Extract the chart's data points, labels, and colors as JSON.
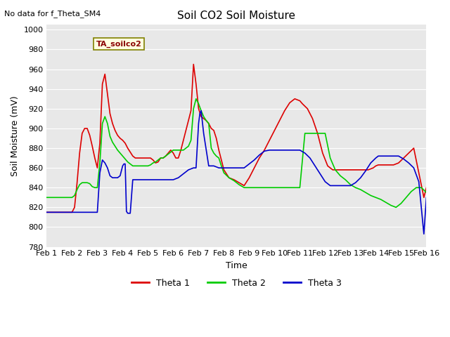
{
  "title": "Soil CO2 Soil Moisture",
  "subtitle": "No data for f_Theta_SM4",
  "ylabel": "Soil Moisture (mV)",
  "xlabel": "Time",
  "legend_label": "TA_soilco2",
  "ylim": [
    780,
    1005
  ],
  "yticks": [
    780,
    800,
    820,
    840,
    860,
    880,
    900,
    920,
    940,
    960,
    980,
    1000
  ],
  "x_labels": [
    "Feb 1",
    "Feb 2",
    "Feb 3",
    "Feb 4",
    "Feb 5",
    "Feb 6",
    "Feb 7",
    "Feb 8",
    "Feb 9",
    "Feb 10",
    "Feb 11",
    "Feb 12",
    "Feb 13",
    "Feb 14",
    "Feb 15",
    "Feb 16"
  ],
  "bg_color": "#e8e8e8",
  "theta1_color": "#dd0000",
  "theta2_color": "#00cc00",
  "theta3_color": "#0000cc",
  "theta1_x": [
    1.0,
    1.1,
    1.2,
    1.3,
    1.4,
    1.5,
    1.6,
    1.7,
    1.8,
    1.9,
    2.0,
    2.1,
    2.2,
    2.3,
    2.4,
    2.5,
    2.6,
    2.7,
    2.8,
    2.9,
    3.0,
    3.1,
    3.2,
    3.3,
    3.4,
    3.5,
    3.6,
    3.7,
    3.8,
    3.9,
    4.0,
    4.1,
    4.2,
    4.3,
    4.4,
    4.5,
    4.6,
    4.7,
    4.8,
    4.9,
    5.0,
    5.1,
    5.2,
    5.3,
    5.4,
    5.5,
    5.6,
    5.7,
    5.8,
    5.9,
    6.0,
    6.1,
    6.2,
    6.3,
    6.4,
    6.5,
    6.6,
    6.7,
    6.8,
    6.9,
    7.0,
    7.1,
    7.2,
    7.3,
    7.4,
    7.5,
    7.6,
    7.7,
    7.8,
    7.9,
    8.0,
    8.2,
    8.4,
    8.6,
    8.8,
    9.0,
    9.2,
    9.4,
    9.6,
    9.8,
    10.0,
    10.2,
    10.4,
    10.6,
    10.8,
    11.0,
    11.1,
    11.3,
    11.5,
    11.7,
    11.9,
    12.1,
    12.3,
    12.5,
    12.7,
    12.9,
    13.1,
    13.3,
    13.5,
    13.7,
    13.9,
    14.0,
    14.1,
    14.3,
    14.5,
    14.7,
    14.9,
    15.1,
    15.3,
    15.5,
    15.7,
    15.9,
    16.0
  ],
  "theta1_y": [
    815,
    815,
    815,
    815,
    815,
    815,
    815,
    815,
    815,
    815,
    815,
    820,
    845,
    875,
    895,
    900,
    900,
    893,
    882,
    870,
    860,
    885,
    945,
    955,
    935,
    915,
    905,
    898,
    893,
    890,
    888,
    885,
    880,
    876,
    872,
    870,
    870,
    870,
    870,
    870,
    870,
    870,
    868,
    865,
    866,
    870,
    870,
    872,
    875,
    878,
    875,
    870,
    870,
    878,
    888,
    898,
    908,
    918,
    965,
    945,
    920,
    912,
    910,
    908,
    905,
    900,
    898,
    890,
    878,
    868,
    858,
    850,
    848,
    845,
    842,
    850,
    860,
    870,
    878,
    888,
    898,
    908,
    918,
    926,
    930,
    928,
    925,
    920,
    910,
    895,
    875,
    862,
    858,
    858,
    858,
    858,
    858,
    858,
    858,
    858,
    860,
    862,
    863,
    863,
    863,
    863,
    865,
    870,
    875,
    880,
    855,
    830,
    840
  ],
  "theta2_x": [
    1.0,
    1.1,
    1.2,
    1.3,
    1.4,
    1.5,
    1.6,
    1.7,
    1.8,
    1.9,
    2.0,
    2.1,
    2.2,
    2.3,
    2.4,
    2.5,
    2.6,
    2.7,
    2.8,
    2.9,
    3.0,
    3.1,
    3.2,
    3.3,
    3.4,
    3.5,
    3.6,
    3.7,
    3.8,
    3.9,
    4.0,
    4.1,
    4.2,
    4.3,
    4.4,
    4.5,
    4.6,
    4.7,
    4.8,
    4.9,
    5.0,
    5.1,
    5.2,
    5.3,
    5.4,
    5.5,
    5.6,
    5.7,
    5.8,
    5.9,
    6.0,
    6.1,
    6.2,
    6.3,
    6.4,
    6.5,
    6.6,
    6.7,
    6.8,
    6.9,
    7.0,
    7.1,
    7.2,
    7.3,
    7.4,
    7.5,
    7.6,
    7.7,
    7.8,
    7.9,
    8.0,
    8.2,
    8.4,
    8.6,
    8.8,
    9.0,
    9.2,
    9.4,
    9.6,
    9.8,
    10.0,
    10.2,
    10.4,
    10.6,
    10.8,
    11.0,
    11.2,
    11.4,
    11.6,
    11.8,
    12.0,
    12.2,
    12.4,
    12.6,
    12.8,
    13.0,
    13.2,
    13.4,
    13.6,
    13.8,
    14.0,
    14.2,
    14.4,
    14.6,
    14.8,
    15.0,
    15.2,
    15.4,
    15.6,
    15.8,
    16.0
  ],
  "theta2_y": [
    830,
    830,
    830,
    830,
    830,
    830,
    830,
    830,
    830,
    830,
    830,
    832,
    838,
    843,
    845,
    845,
    845,
    844,
    841,
    840,
    840,
    865,
    905,
    912,
    905,
    892,
    886,
    882,
    878,
    875,
    872,
    869,
    866,
    864,
    862,
    862,
    862,
    862,
    862,
    862,
    862,
    863,
    865,
    866,
    868,
    870,
    870,
    872,
    874,
    876,
    878,
    878,
    878,
    878,
    878,
    880,
    882,
    888,
    920,
    930,
    925,
    918,
    912,
    908,
    905,
    880,
    875,
    872,
    870,
    862,
    855,
    850,
    847,
    843,
    840,
    840,
    840,
    840,
    840,
    840,
    840,
    840,
    840,
    840,
    840,
    840,
    895,
    895,
    895,
    895,
    895,
    870,
    858,
    852,
    848,
    843,
    840,
    838,
    835,
    832,
    830,
    828,
    825,
    822,
    820,
    824,
    830,
    836,
    840,
    840,
    835
  ],
  "theta3_x": [
    1.0,
    1.1,
    1.2,
    1.3,
    1.4,
    1.5,
    1.6,
    1.7,
    1.8,
    1.9,
    2.0,
    2.1,
    2.2,
    2.3,
    2.4,
    2.5,
    2.6,
    2.7,
    2.8,
    2.9,
    3.0,
    3.1,
    3.2,
    3.3,
    3.4,
    3.5,
    3.6,
    3.7,
    3.8,
    3.9,
    4.0,
    4.05,
    4.1,
    4.15,
    4.2,
    4.3,
    4.4,
    4.5,
    4.6,
    4.7,
    4.8,
    4.9,
    5.0,
    5.2,
    5.4,
    5.6,
    5.8,
    6.0,
    6.2,
    6.4,
    6.6,
    6.8,
    6.9,
    7.0,
    7.05,
    7.1,
    7.2,
    7.4,
    7.6,
    7.8,
    8.0,
    8.2,
    8.4,
    8.6,
    8.8,
    9.0,
    9.2,
    9.4,
    9.6,
    9.8,
    10.0,
    10.2,
    10.4,
    10.6,
    10.8,
    11.0,
    11.2,
    11.4,
    11.6,
    11.8,
    12.0,
    12.2,
    12.4,
    12.6,
    12.8,
    13.0,
    13.2,
    13.4,
    13.6,
    13.8,
    14.0,
    14.05,
    14.1,
    14.3,
    14.5,
    14.7,
    14.9,
    15.1,
    15.3,
    15.5,
    15.7,
    15.9,
    16.0
  ],
  "theta3_y": [
    815,
    815,
    815,
    815,
    815,
    815,
    815,
    815,
    815,
    815,
    815,
    815,
    815,
    815,
    815,
    815,
    815,
    815,
    815,
    815,
    815,
    855,
    868,
    865,
    860,
    852,
    850,
    850,
    850,
    852,
    862,
    864,
    864,
    816,
    814,
    814,
    848,
    848,
    848,
    848,
    848,
    848,
    848,
    848,
    848,
    848,
    848,
    848,
    850,
    854,
    858,
    860,
    860,
    905,
    915,
    918,
    895,
    862,
    862,
    860,
    860,
    860,
    860,
    860,
    860,
    864,
    868,
    873,
    877,
    878,
    878,
    878,
    878,
    878,
    878,
    878,
    875,
    870,
    862,
    854,
    846,
    842,
    842,
    842,
    842,
    842,
    845,
    850,
    857,
    865,
    870,
    871,
    872,
    872,
    872,
    872,
    872,
    869,
    865,
    860,
    846,
    793,
    830
  ]
}
